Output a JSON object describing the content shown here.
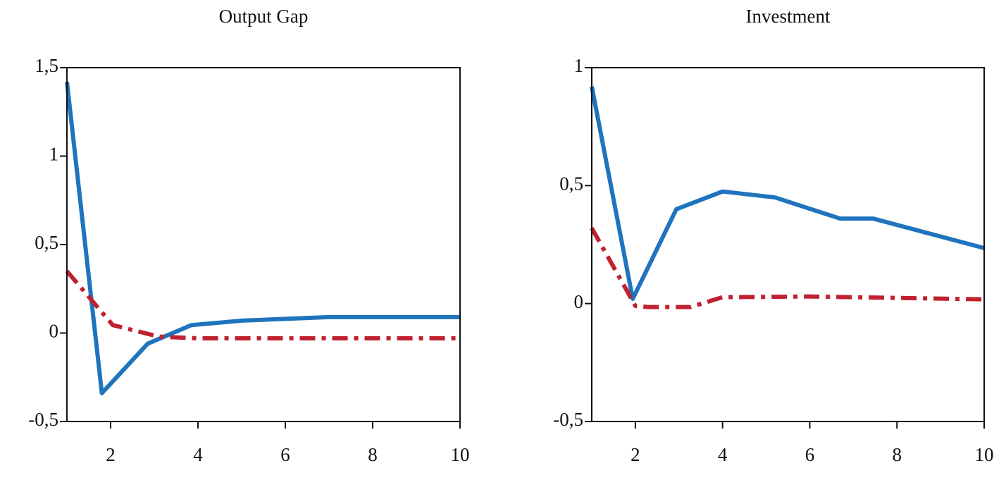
{
  "chart_data": [
    {
      "type": "line",
      "title": "Output Gap",
      "xlim": [
        1,
        10
      ],
      "xticks": [
        2,
        4,
        6,
        8,
        10
      ],
      "ylim": [
        -0.5,
        1.5
      ],
      "yticks": [
        {
          "value": 1.5,
          "label": "1,5"
        },
        1,
        {
          "value": 0.5,
          "label": "0,5"
        },
        0,
        {
          "value": -0.5,
          "label": "-0,5"
        }
      ],
      "series": [
        {
          "color": "#1f74bd",
          "linestyle": "solid",
          "x": [
            1,
            1.8,
            2.85,
            3.85,
            5,
            6,
            7,
            8,
            9,
            10
          ],
          "values": [
            1.42,
            -0.34,
            -0.06,
            0.045,
            0.07,
            0.08,
            0.09,
            0.09,
            0.09,
            0.09
          ]
        },
        {
          "color": "#c0212f",
          "linestyle": "dashdot",
          "x": [
            1,
            2.05,
            3.1,
            4,
            6,
            8,
            10
          ],
          "values": [
            0.35,
            0.045,
            -0.02,
            -0.03,
            -0.03,
            -0.03,
            -0.03
          ]
        }
      ]
    },
    {
      "type": "line",
      "title": "Investment",
      "xlim": [
        1,
        10
      ],
      "xticks": [
        2,
        4,
        6,
        8,
        10
      ],
      "ylim": [
        -0.5,
        1
      ],
      "yticks": [
        1,
        {
          "value": 0.5,
          "label": "0,5"
        },
        0,
        {
          "value": -0.5,
          "label": "-0,5"
        }
      ],
      "series": [
        {
          "color": "#1f74bd",
          "linestyle": "solid",
          "x": [
            1,
            1.94,
            2.94,
            4,
            5.2,
            6.7,
            7.46,
            10
          ],
          "values": [
            0.92,
            0.02,
            0.4,
            0.475,
            0.45,
            0.36,
            0.36,
            0.235
          ]
        },
        {
          "color": "#c0212f",
          "linestyle": "dashdot",
          "x": [
            1,
            2,
            2.3,
            3.26,
            4,
            6,
            10
          ],
          "values": [
            0.32,
            -0.01,
            -0.015,
            -0.015,
            0.027,
            0.03,
            0.018
          ]
        }
      ]
    }
  ]
}
